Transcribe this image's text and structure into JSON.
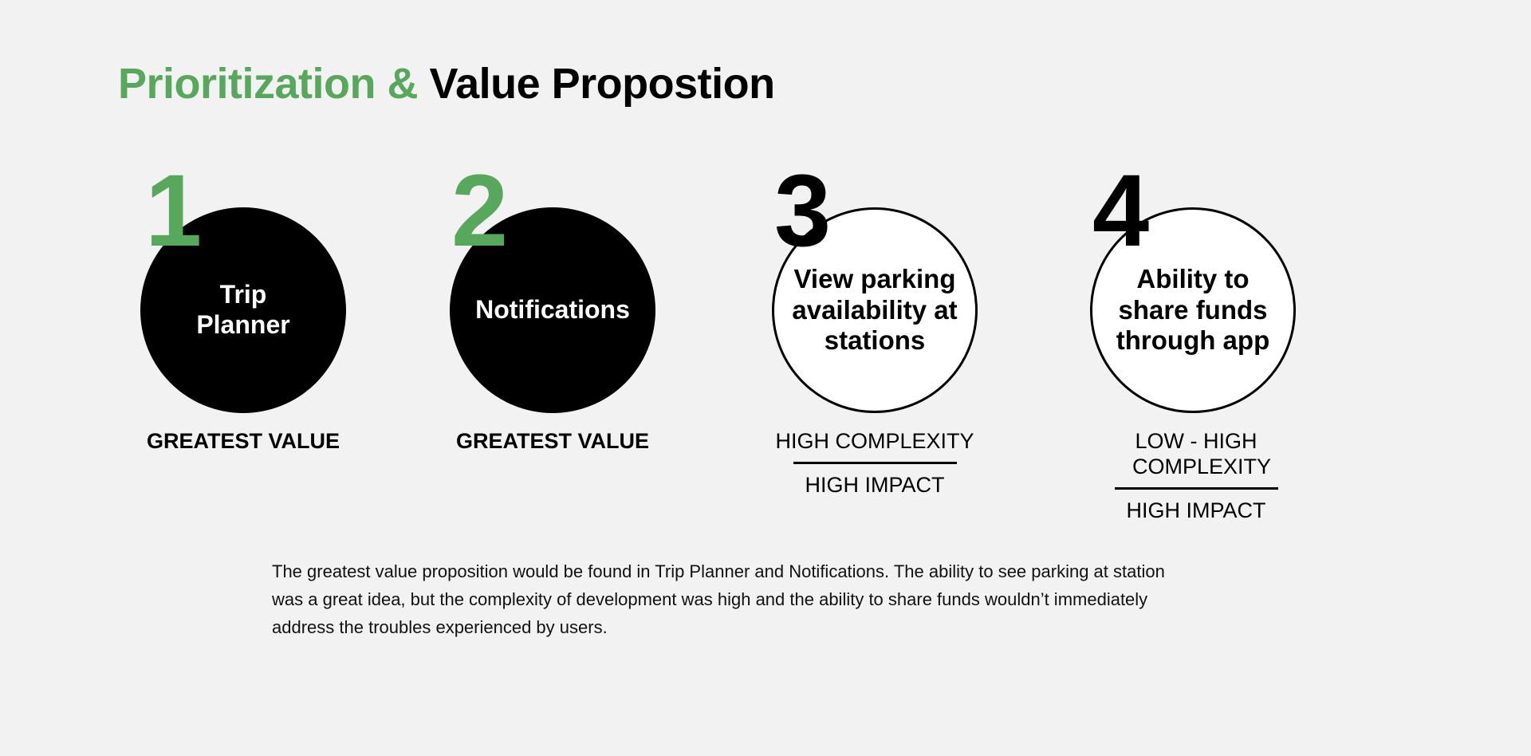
{
  "title": {
    "part_green": "Prioritization &",
    "part_black": "Value Propostion"
  },
  "colors": {
    "accent_green": "#57a85c",
    "background": "#f2f2f2",
    "black": "#000000"
  },
  "priorities": [
    {
      "number": "1",
      "label": "Trip Planner",
      "value_label": "GREATEST VALUE"
    },
    {
      "number": "2",
      "label": "Notifications",
      "value_label": "GREATEST VALUE"
    },
    {
      "number": "3",
      "label": "View parking availability at stations",
      "complexity": "HIGH COMPLEXITY",
      "impact": "HIGH IMPACT"
    },
    {
      "number": "4",
      "label": "Ability to share funds through app",
      "complexity": "LOW - HIGH COMPLEXITY",
      "impact": "HIGH IMPACT"
    }
  ],
  "description": "The greatest value proposition would be found in Trip Planner and Notifications. The ability to see parking at station was a great idea, but the complexity of development was high and the ability to share funds wouldn’t immediately address the troubles experienced by users."
}
